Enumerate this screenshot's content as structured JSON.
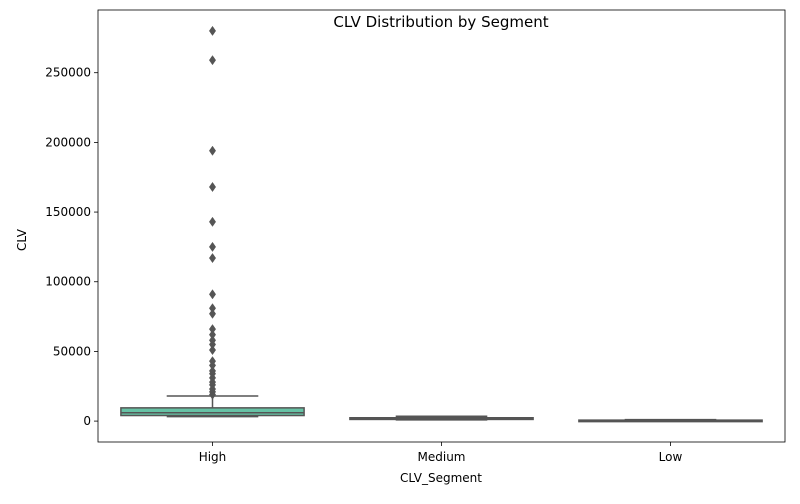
{
  "chart_data": {
    "type": "box",
    "title": "CLV Distribution by Segment",
    "xlabel": "CLV_Segment",
    "ylabel": "CLV",
    "categories": [
      "High",
      "Medium",
      "Low"
    ],
    "ylim": [
      -15000,
      295000
    ],
    "yticks": [
      0,
      50000,
      100000,
      150000,
      200000,
      250000
    ],
    "ytick_labels": [
      "0",
      "50000",
      "100000",
      "150000",
      "200000",
      "250000"
    ],
    "grid": false,
    "legend": "none",
    "colors": {
      "High": "#66c2a5",
      "Medium": "#fc8d62",
      "Low": "#8da0cb",
      "line": "#555555",
      "outlier": "#555555"
    },
    "boxes": [
      {
        "category": "High",
        "whisker_low": 3200,
        "q1": 4000,
        "median": 6000,
        "q3": 9500,
        "whisker_high": 18000,
        "outliers": [
          19000,
          21000,
          23000,
          26000,
          28000,
          31000,
          34000,
          36000,
          40000,
          43000,
          51000,
          55000,
          58000,
          62000,
          66000,
          77000,
          81000,
          91000,
          117000,
          125000,
          143000,
          168000,
          194000,
          259000,
          280000
        ]
      },
      {
        "category": "Medium",
        "whisker_low": 900,
        "q1": 1200,
        "median": 1800,
        "q3": 2400,
        "whisker_high": 3500,
        "outliers": []
      },
      {
        "category": "Low",
        "whisker_low": 0,
        "q1": 200,
        "median": 450,
        "q3": 700,
        "whisker_high": 1100,
        "outliers": []
      }
    ]
  }
}
